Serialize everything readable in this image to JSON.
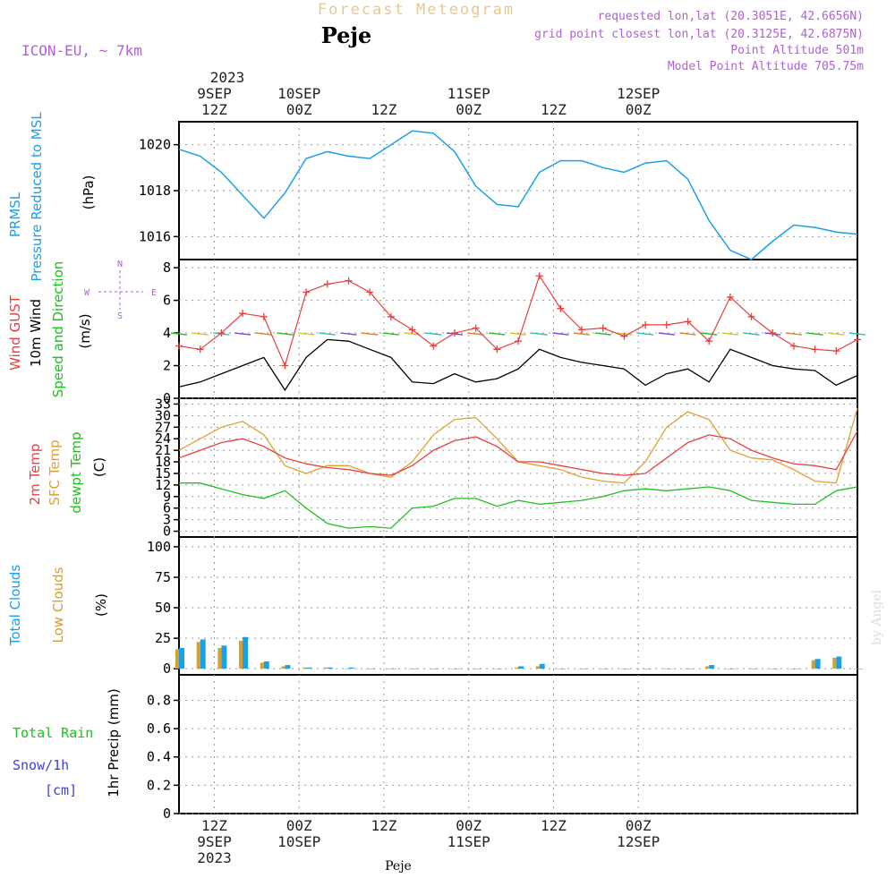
{
  "header": {
    "title": "Forecast Meteogram",
    "station": "Peje",
    "model": "ICON-EU, ~ 7km",
    "requested": "requested lon,lat (20.3051E, 42.6656N)",
    "gridpoint": "grid point closest lon,lat (20.3125E, 42.6875N)",
    "altitude": "Point Altitude 501m",
    "model_altitude": "Model Point Altitude 705.75m",
    "credit": "by Angel",
    "footer_station": "Peje"
  },
  "time_axis": {
    "top_year": "2023",
    "labels": [
      {
        "line1": "9SEP",
        "line2": "12Z"
      },
      {
        "line1": "10SEP",
        "line2": "00Z"
      },
      {
        "line1": "",
        "line2": "12Z"
      },
      {
        "line1": "11SEP",
        "line2": "00Z"
      },
      {
        "line1": "",
        "line2": "12Z"
      },
      {
        "line1": "12SEP",
        "line2": "00Z"
      }
    ],
    "bottom_labels": [
      {
        "line1": "12Z",
        "line2": "9SEP",
        "line3": "2023"
      },
      {
        "line1": "00Z",
        "line2": "10SEP",
        "line3": ""
      },
      {
        "line1": "12Z",
        "line2": "",
        "line3": ""
      },
      {
        "line1": "00Z",
        "line2": "11SEP",
        "line3": ""
      },
      {
        "line1": "12Z",
        "line2": "",
        "line3": ""
      },
      {
        "line1": "00Z",
        "line2": "12SEP",
        "line3": ""
      }
    ]
  },
  "panels": {
    "pressure": {
      "label1": "PRMSL",
      "label2": "Pressure Reduced to MSL",
      "unit": "(hPa)",
      "ticks": [
        "1016",
        "1018",
        "1020"
      ]
    },
    "wind": {
      "label_gust": "Wind GUST",
      "label_wind": "10m Wind",
      "label_dir": "Speed and Direction",
      "unit": "(m/s)",
      "ticks": [
        "0",
        "2",
        "4",
        "6",
        "8"
      ],
      "compass_n": "N",
      "compass_s": "S",
      "compass_w": "W",
      "compass_e": "E"
    },
    "temp": {
      "label_2m": "2m Temp",
      "label_sfc": "SFC Temp",
      "label_dew": "dewpt Temp",
      "unit": "(C)",
      "ticks": [
        "0",
        "3",
        "6",
        "9",
        "12",
        "15",
        "18",
        "21",
        "24",
        "27",
        "30",
        "33"
      ]
    },
    "clouds": {
      "label_total": "Total Clouds",
      "label_low": "Low Clouds",
      "unit": "(%)",
      "ticks": [
        "0",
        "25",
        "50",
        "75",
        "100"
      ]
    },
    "precip": {
      "label_rain": "Total  Rain",
      "label_snow": "Snow/1h",
      "label_cm": "[cm]",
      "unit_label": "1hr Precip (mm)",
      "ticks": [
        "0",
        "0.2",
        "0.4",
        "0.6",
        "0.8"
      ]
    }
  },
  "colors": {
    "pressure": "#1aa0e8",
    "gust": "#e84040",
    "wind": "#000000",
    "t2m": "#e84040",
    "sfc": "#e0a030",
    "dew": "#20c020",
    "total_clouds": "#1aa0e8",
    "low_clouds": "#d4a030",
    "purple": "#b060d8",
    "title": "#e8c890",
    "rain": "#20c020",
    "snow": "#4040e0"
  },
  "chart_data": {
    "type": "line",
    "x_hours": [
      0,
      3,
      6,
      9,
      12,
      15,
      18,
      21,
      24,
      27,
      30,
      33,
      36,
      39,
      42,
      45,
      48,
      51,
      54,
      57,
      60,
      63,
      66,
      69,
      72,
      75,
      78,
      81,
      84,
      87,
      90,
      93,
      96
    ],
    "x_start": "2023-09-09 07Z",
    "pressure_hPa": [
      1019.8,
      1019.5,
      1018.8,
      1017.8,
      1016.8,
      1017.9,
      1019.4,
      1019.7,
      1019.5,
      1019.4,
      1020.0,
      1020.6,
      1020.5,
      1019.7,
      1018.2,
      1017.4,
      1017.3,
      1018.8,
      1019.3,
      1019.3,
      1019.0,
      1018.8,
      1019.2,
      1019.3,
      1018.5,
      1016.7,
      1015.4,
      1015.0,
      1015.8,
      1016.5,
      1016.4,
      1016.2,
      1016.1
    ],
    "gust_ms": [
      3.2,
      3.0,
      4.0,
      5.2,
      5.0,
      2.0,
      6.5,
      7.0,
      7.2,
      6.5,
      5.0,
      4.2,
      3.2,
      4.0,
      4.3,
      3.0,
      3.5,
      7.5,
      5.5,
      4.2,
      4.3,
      3.8,
      4.5,
      4.5,
      4.7,
      3.5,
      6.2,
      5.0,
      4.0,
      3.2,
      3.0,
      2.9,
      3.6
    ],
    "wind_ms": [
      0.7,
      1.0,
      1.5,
      2.0,
      2.5,
      0.5,
      2.5,
      3.6,
      3.5,
      3.0,
      2.5,
      1.0,
      0.9,
      1.5,
      1.0,
      1.2,
      1.8,
      3.0,
      2.5,
      2.2,
      2.0,
      1.8,
      0.8,
      1.5,
      1.8,
      1.0,
      3.0,
      2.5,
      2.0,
      1.8,
      1.7,
      0.8,
      1.4
    ],
    "t2m_C": [
      19,
      21,
      23,
      24,
      22,
      19,
      17.5,
      16.5,
      16,
      15,
      14.5,
      17,
      21,
      23.5,
      24.5,
      22,
      18,
      18,
      17,
      16,
      15,
      14.5,
      15,
      19,
      23,
      25,
      24,
      21,
      19,
      17.5,
      17,
      16,
      26
    ],
    "sfc_C": [
      21,
      24,
      27,
      28.5,
      25,
      17,
      15,
      17,
      17,
      15,
      14,
      18,
      25,
      29,
      29.5,
      24,
      18,
      17,
      16,
      14,
      13,
      12.5,
      18,
      27,
      31,
      29,
      21,
      19,
      18.5,
      16,
      13,
      12.5,
      32
    ],
    "dew_C": [
      12.5,
      12.5,
      11,
      9.5,
      8.5,
      10.5,
      6,
      2,
      0.8,
      1.2,
      0.8,
      6,
      6.5,
      8.5,
      8.5,
      6.5,
      8,
      7,
      7.5,
      8,
      9,
      10.5,
      11,
      10.5,
      11,
      11.5,
      10.5,
      8,
      7.5,
      7,
      7,
      10.5,
      11.5
    ],
    "total_clouds_pct": [
      17,
      24,
      19,
      26,
      6,
      3,
      1,
      1,
      1,
      0,
      0,
      0,
      0,
      0,
      0,
      0,
      2,
      4,
      0,
      0,
      0,
      0,
      0,
      0,
      0,
      3,
      0,
      0,
      0,
      0,
      8,
      10,
      0
    ],
    "low_clouds_pct": [
      16,
      22,
      17,
      23,
      5,
      2,
      1,
      1,
      0,
      0,
      0,
      0,
      0,
      0,
      0,
      0,
      1,
      2,
      0,
      0,
      0,
      0,
      0,
      0,
      0,
      2,
      0,
      0,
      0,
      0,
      7,
      9,
      0
    ],
    "precip_mm": []
  }
}
